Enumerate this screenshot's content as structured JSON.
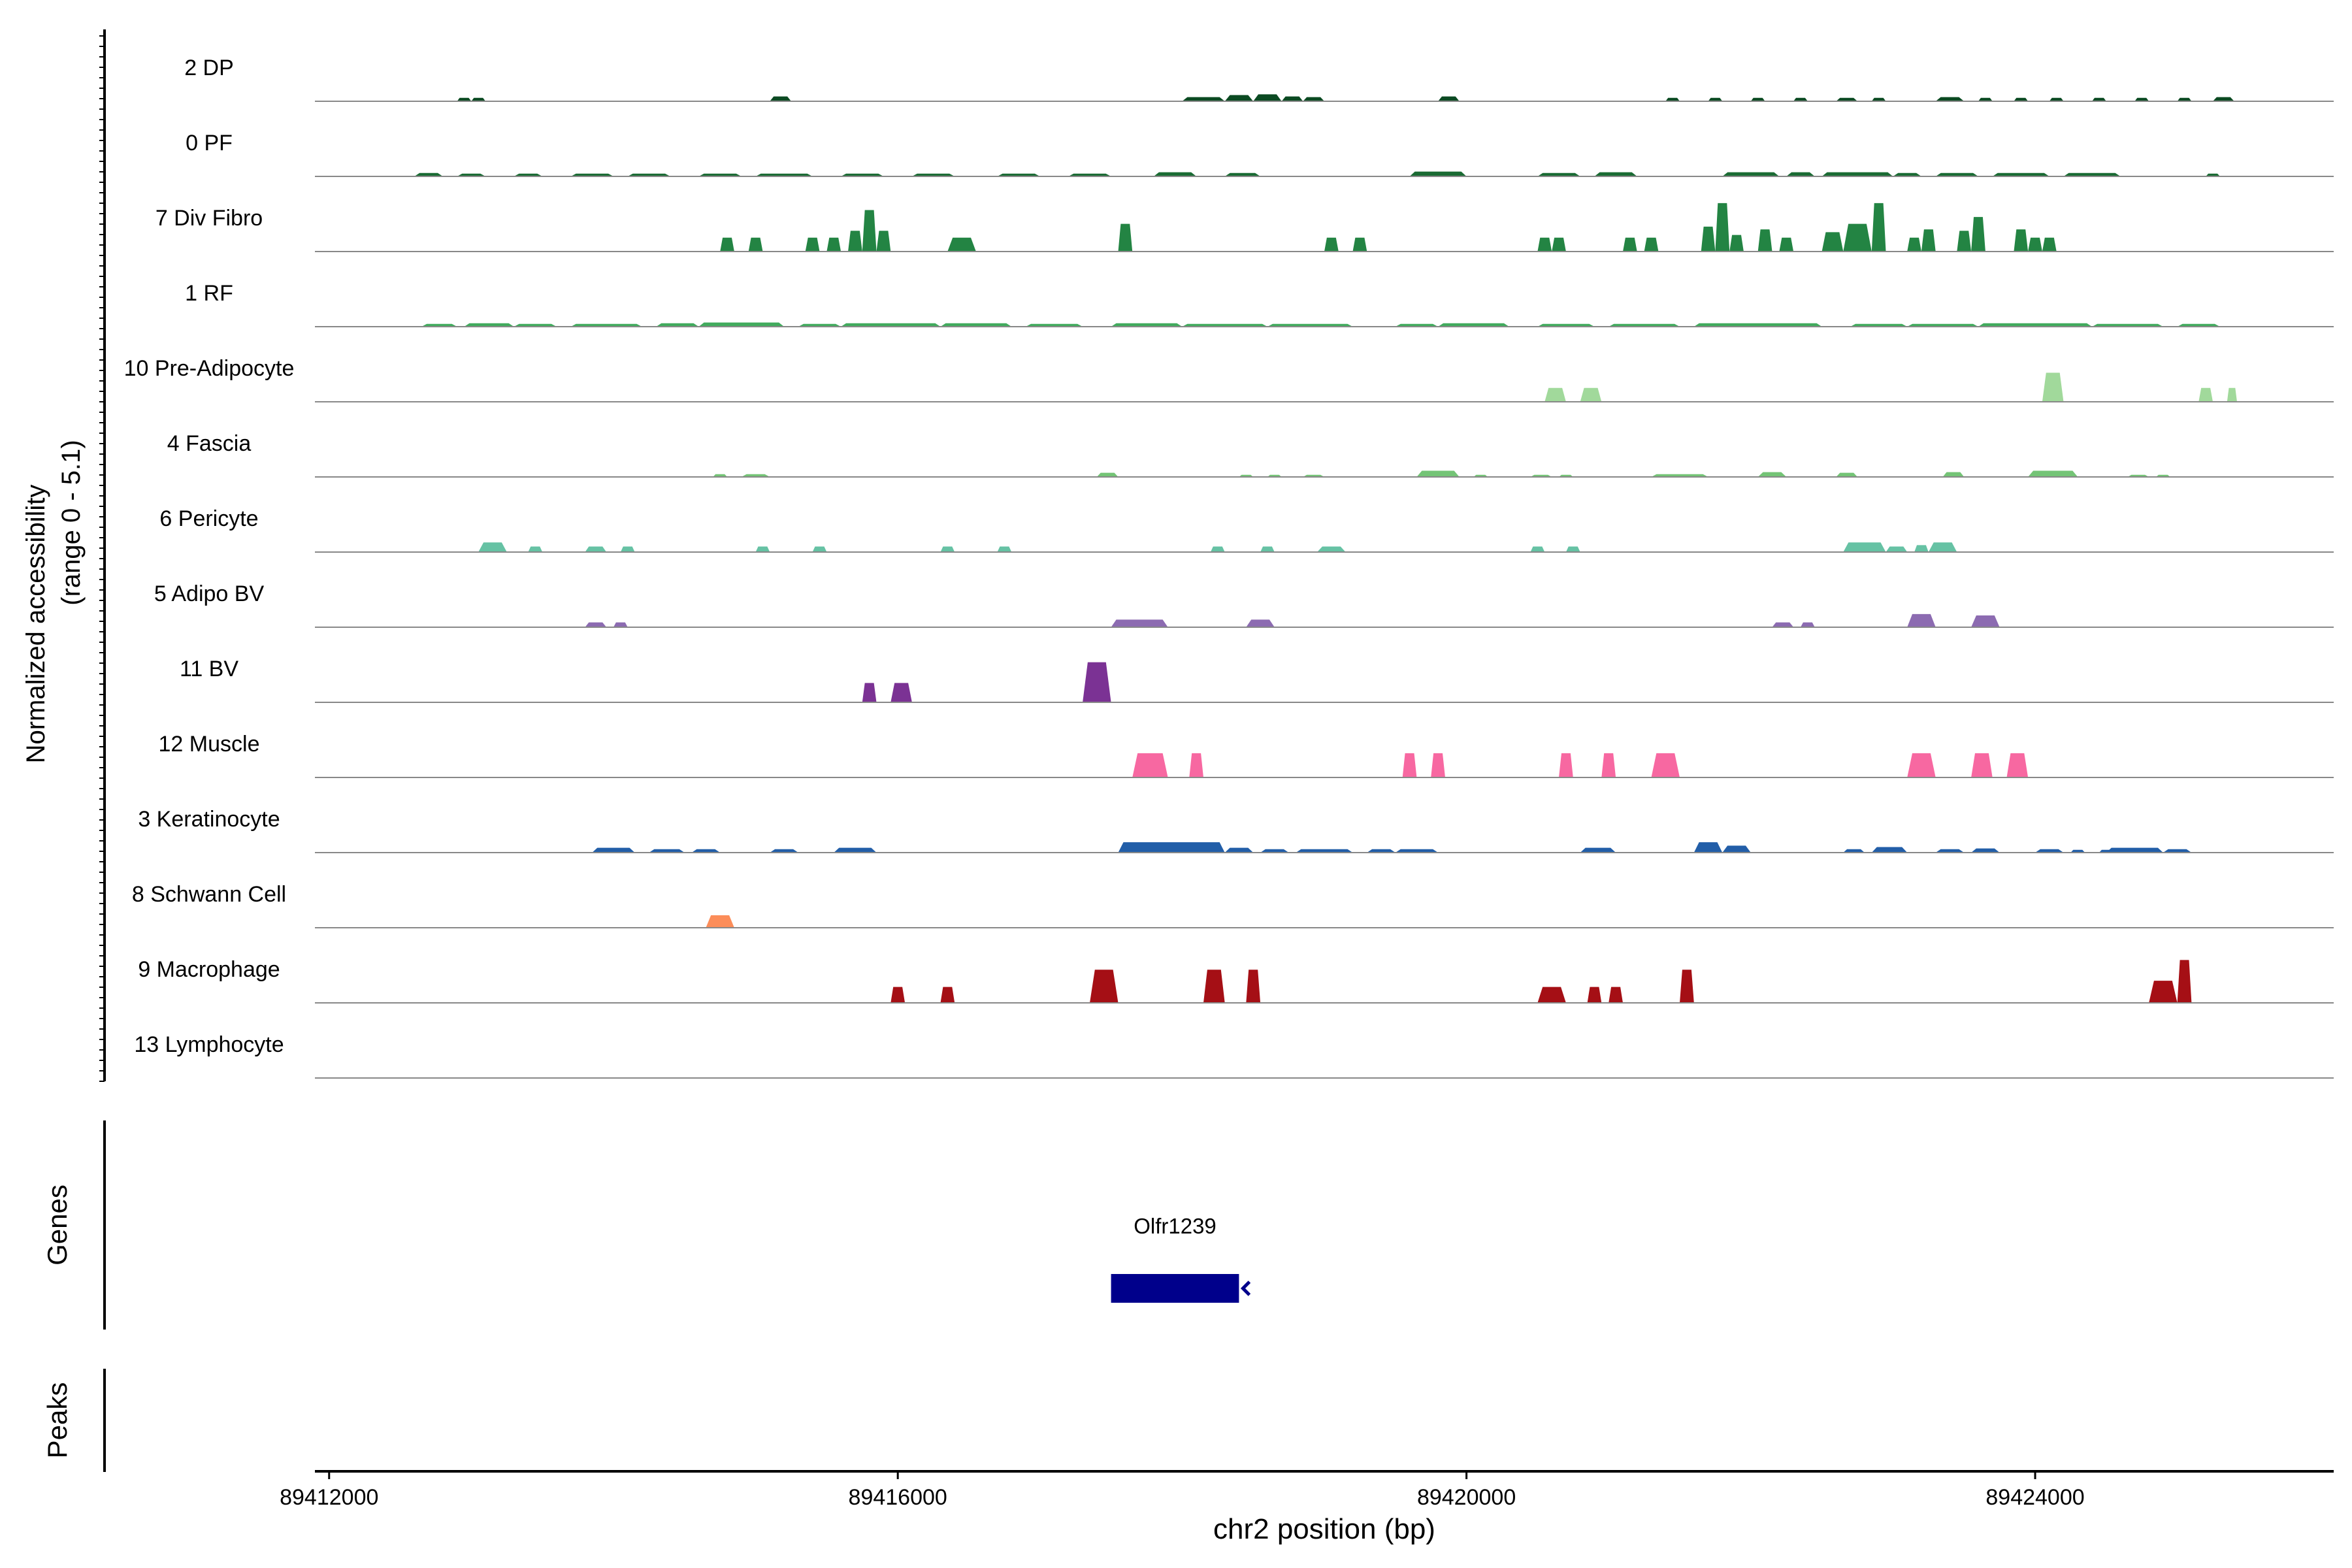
{
  "chart_data": {
    "type": "area",
    "title": "",
    "xlabel": "chr2 position (bp)",
    "ylabel_line1": "Normalized accessibility",
    "ylabel_line2": "(range 0 - 5.1)",
    "ylim": [
      0,
      5.1
    ],
    "xlim": [
      89411900,
      89426100
    ],
    "xticks": [
      89412000,
      89416000,
      89420000,
      89424000
    ],
    "xtick_labels": [
      "89412000",
      "89416000",
      "89420000",
      "89424000"
    ],
    "tracks": [
      {
        "name": "2 DP",
        "color": "#0b4a22",
        "regions": [
          [
            89412900,
            89413000,
            0.25
          ],
          [
            89413000,
            89413100,
            0.25
          ],
          [
            89415100,
            89415250,
            0.35
          ],
          [
            89418000,
            89418300,
            0.3
          ],
          [
            89418300,
            89418500,
            0.45
          ],
          [
            89418500,
            89418700,
            0.5
          ],
          [
            89418700,
            89418850,
            0.35
          ],
          [
            89418850,
            89419000,
            0.3
          ],
          [
            89419800,
            89419950,
            0.35
          ],
          [
            89421400,
            89421500,
            0.25
          ],
          [
            89421700,
            89421800,
            0.25
          ],
          [
            89422000,
            89422100,
            0.25
          ],
          [
            89422300,
            89422400,
            0.25
          ],
          [
            89422600,
            89422750,
            0.25
          ],
          [
            89422850,
            89422950,
            0.25
          ],
          [
            89423300,
            89423500,
            0.3
          ],
          [
            89423600,
            89423700,
            0.25
          ],
          [
            89423850,
            89423950,
            0.25
          ],
          [
            89424100,
            89424200,
            0.25
          ],
          [
            89424400,
            89424500,
            0.25
          ],
          [
            89424700,
            89424800,
            0.25
          ],
          [
            89425000,
            89425100,
            0.25
          ],
          [
            89425250,
            89425400,
            0.3
          ]
        ]
      },
      {
        "name": "0 PF",
        "color": "#1a6b33",
        "regions": [
          [
            89412600,
            89412800,
            0.25
          ],
          [
            89412900,
            89413100,
            0.2
          ],
          [
            89413300,
            89413500,
            0.2
          ],
          [
            89413700,
            89414000,
            0.2
          ],
          [
            89414100,
            89414400,
            0.2
          ],
          [
            89414600,
            89414900,
            0.2
          ],
          [
            89415000,
            89415400,
            0.2
          ],
          [
            89415600,
            89415900,
            0.2
          ],
          [
            89416100,
            89416400,
            0.2
          ],
          [
            89416700,
            89417000,
            0.2
          ],
          [
            89417200,
            89417500,
            0.2
          ],
          [
            89417800,
            89418100,
            0.3
          ],
          [
            89418300,
            89418550,
            0.25
          ],
          [
            89419600,
            89420000,
            0.35
          ],
          [
            89420500,
            89420800,
            0.25
          ],
          [
            89420900,
            89421200,
            0.3
          ],
          [
            89421800,
            89422200,
            0.3
          ],
          [
            89422250,
            89422450,
            0.3
          ],
          [
            89422500,
            89423000,
            0.3
          ],
          [
            89423000,
            89423200,
            0.25
          ],
          [
            89423300,
            89423600,
            0.25
          ],
          [
            89423700,
            89424100,
            0.25
          ],
          [
            89424200,
            89424600,
            0.25
          ],
          [
            89425200,
            89425300,
            0.2
          ]
        ]
      },
      {
        "name": "7 Div Fibro",
        "color": "#238443",
        "regions": [
          [
            89414750,
            89414850,
            1.0
          ],
          [
            89414950,
            89415050,
            1.0
          ],
          [
            89415350,
            89415450,
            1.0
          ],
          [
            89415500,
            89415600,
            1.0
          ],
          [
            89415650,
            89415750,
            1.5
          ],
          [
            89415750,
            89415850,
            3.0
          ],
          [
            89415850,
            89415950,
            1.5
          ],
          [
            89416350,
            89416550,
            1.0
          ],
          [
            89417550,
            89417650,
            2.0
          ],
          [
            89419000,
            89419100,
            1.0
          ],
          [
            89419200,
            89419300,
            1.0
          ],
          [
            89420500,
            89420600,
            1.0
          ],
          [
            89420600,
            89420700,
            1.0
          ],
          [
            89421100,
            89421200,
            1.0
          ],
          [
            89421250,
            89421350,
            1.0
          ],
          [
            89421650,
            89421750,
            1.8
          ],
          [
            89421750,
            89421850,
            3.5
          ],
          [
            89421850,
            89421950,
            1.2
          ],
          [
            89422050,
            89422150,
            1.6
          ],
          [
            89422200,
            89422300,
            1.0
          ],
          [
            89422500,
            89422650,
            1.4
          ],
          [
            89422650,
            89422850,
            2.0
          ],
          [
            89422850,
            89422950,
            3.5
          ],
          [
            89423100,
            89423200,
            1.0
          ],
          [
            89423200,
            89423300,
            1.6
          ],
          [
            89423450,
            89423550,
            1.5
          ],
          [
            89423550,
            89423650,
            2.5
          ],
          [
            89423850,
            89423950,
            1.6
          ],
          [
            89423950,
            89424050,
            1.0
          ],
          [
            89424050,
            89424150,
            1.0
          ]
        ]
      },
      {
        "name": "1 RF",
        "color": "#41ab5d",
        "regions": [
          [
            89412650,
            89412900,
            0.2
          ],
          [
            89412950,
            89413300,
            0.25
          ],
          [
            89413300,
            89413600,
            0.2
          ],
          [
            89413700,
            89414200,
            0.2
          ],
          [
            89414300,
            89414600,
            0.25
          ],
          [
            89414600,
            89415200,
            0.3
          ],
          [
            89415300,
            89415600,
            0.2
          ],
          [
            89415600,
            89416300,
            0.25
          ],
          [
            89416300,
            89416800,
            0.25
          ],
          [
            89416900,
            89417300,
            0.2
          ],
          [
            89417500,
            89418000,
            0.25
          ],
          [
            89418000,
            89418600,
            0.2
          ],
          [
            89418600,
            89419200,
            0.2
          ],
          [
            89419500,
            89419800,
            0.2
          ],
          [
            89419800,
            89420300,
            0.25
          ],
          [
            89420500,
            89420900,
            0.2
          ],
          [
            89421000,
            89421500,
            0.2
          ],
          [
            89421600,
            89422500,
            0.25
          ],
          [
            89422700,
            89423100,
            0.2
          ],
          [
            89423100,
            89423600,
            0.2
          ],
          [
            89423600,
            89424400,
            0.25
          ],
          [
            89424400,
            89424900,
            0.2
          ],
          [
            89425000,
            89425300,
            0.2
          ]
        ]
      },
      {
        "name": "10 Pre-Adipocyte",
        "color": "#a1d99b",
        "regions": [
          [
            89420550,
            89420700,
            1.0
          ],
          [
            89420800,
            89420950,
            1.0
          ],
          [
            89424050,
            89424200,
            2.1
          ],
          [
            89425150,
            89425250,
            1.0
          ],
          [
            89425350,
            89425420,
            1.0
          ]
        ]
      },
      {
        "name": "4 Fascia",
        "color": "#74c476",
        "regions": [
          [
            89414700,
            89414800,
            0.2
          ],
          [
            89414900,
            89415100,
            0.2
          ],
          [
            89417400,
            89417550,
            0.3
          ],
          [
            89418400,
            89418500,
            0.15
          ],
          [
            89418600,
            89418700,
            0.15
          ],
          [
            89418850,
            89419000,
            0.15
          ],
          [
            89419650,
            89419950,
            0.45
          ],
          [
            89420050,
            89420150,
            0.15
          ],
          [
            89420450,
            89420600,
            0.15
          ],
          [
            89420650,
            89420750,
            0.15
          ],
          [
            89421300,
            89421700,
            0.2
          ],
          [
            89422050,
            89422250,
            0.35
          ],
          [
            89422600,
            89422750,
            0.3
          ],
          [
            89423350,
            89423500,
            0.35
          ],
          [
            89423950,
            89424300,
            0.45
          ],
          [
            89424650,
            89424800,
            0.15
          ],
          [
            89424850,
            89424950,
            0.15
          ]
        ]
      },
      {
        "name": "6 Pericyte",
        "color": "#66c2a4",
        "regions": [
          [
            89413050,
            89413250,
            0.7
          ],
          [
            89413400,
            89413500,
            0.4
          ],
          [
            89413800,
            89413950,
            0.4
          ],
          [
            89414050,
            89414150,
            0.4
          ],
          [
            89415000,
            89415100,
            0.4
          ],
          [
            89415400,
            89415500,
            0.4
          ],
          [
            89416300,
            89416400,
            0.4
          ],
          [
            89416700,
            89416800,
            0.4
          ],
          [
            89418200,
            89418300,
            0.4
          ],
          [
            89418550,
            89418650,
            0.4
          ],
          [
            89418950,
            89419150,
            0.4
          ],
          [
            89420450,
            89420550,
            0.4
          ],
          [
            89420700,
            89420800,
            0.4
          ],
          [
            89422650,
            89422950,
            0.7
          ],
          [
            89422950,
            89423100,
            0.4
          ],
          [
            89423150,
            89423250,
            0.5
          ],
          [
            89423250,
            89423450,
            0.7
          ]
        ]
      },
      {
        "name": "5 Adipo BV",
        "color": "#8c6bb1",
        "regions": [
          [
            89413800,
            89413950,
            0.35
          ],
          [
            89414000,
            89414100,
            0.35
          ],
          [
            89417500,
            89417900,
            0.55
          ],
          [
            89418450,
            89418650,
            0.55
          ],
          [
            89422150,
            89422300,
            0.35
          ],
          [
            89422350,
            89422450,
            0.35
          ],
          [
            89423100,
            89423300,
            0.95
          ],
          [
            89423550,
            89423750,
            0.85
          ]
        ]
      },
      {
        "name": "11 BV",
        "color": "#7b3294",
        "regions": [
          [
            89415750,
            89415850,
            1.4
          ],
          [
            89415950,
            89416100,
            1.4
          ],
          [
            89417300,
            89417500,
            2.9
          ]
        ]
      },
      {
        "name": "12 Muscle",
        "color": "#f768a1",
        "regions": [
          [
            89417650,
            89417900,
            1.75
          ],
          [
            89418050,
            89418150,
            1.75
          ],
          [
            89419550,
            89419650,
            1.75
          ],
          [
            89419750,
            89419850,
            1.75
          ],
          [
            89420650,
            89420750,
            1.75
          ],
          [
            89420950,
            89421050,
            1.75
          ],
          [
            89421300,
            89421500,
            1.75
          ],
          [
            89423100,
            89423300,
            1.75
          ],
          [
            89423550,
            89423700,
            1.75
          ],
          [
            89423800,
            89423950,
            1.75
          ]
        ]
      },
      {
        "name": "3 Keratinocyte",
        "color": "#225ea8",
        "regions": [
          [
            89413850,
            89414150,
            0.35
          ],
          [
            89414250,
            89414500,
            0.25
          ],
          [
            89414550,
            89414750,
            0.25
          ],
          [
            89415100,
            89415300,
            0.25
          ],
          [
            89415550,
            89415850,
            0.35
          ],
          [
            89417550,
            89418300,
            0.75
          ],
          [
            89418300,
            89418500,
            0.35
          ],
          [
            89418550,
            89418750,
            0.25
          ],
          [
            89418800,
            89419200,
            0.25
          ],
          [
            89419300,
            89419500,
            0.25
          ],
          [
            89419500,
            89419800,
            0.25
          ],
          [
            89420800,
            89421050,
            0.35
          ],
          [
            89421600,
            89421800,
            0.75
          ],
          [
            89421800,
            89422000,
            0.5
          ],
          [
            89422650,
            89422800,
            0.25
          ],
          [
            89422850,
            89423100,
            0.4
          ],
          [
            89423300,
            89423500,
            0.25
          ],
          [
            89423550,
            89423750,
            0.3
          ],
          [
            89424000,
            89424200,
            0.25
          ],
          [
            89424250,
            89424350,
            0.2
          ],
          [
            89424450,
            89424550,
            0.2
          ],
          [
            89424500,
            89424900,
            0.35
          ],
          [
            89424900,
            89425100,
            0.25
          ]
        ]
      },
      {
        "name": "8 Schwann Cell",
        "color": "#fc8d59",
        "regions": [
          [
            89414650,
            89414850,
            0.9
          ]
        ]
      },
      {
        "name": "9 Macrophage",
        "color": "#a50f15",
        "regions": [
          [
            89415950,
            89416050,
            1.15
          ],
          [
            89416300,
            89416400,
            1.15
          ],
          [
            89417350,
            89417550,
            2.4
          ],
          [
            89418150,
            89418300,
            2.4
          ],
          [
            89418450,
            89418550,
            2.4
          ],
          [
            89420500,
            89420700,
            1.15
          ],
          [
            89420850,
            89420950,
            1.15
          ],
          [
            89421000,
            89421100,
            1.15
          ],
          [
            89421500,
            89421600,
            2.4
          ],
          [
            89424800,
            89425000,
            1.6
          ],
          [
            89425000,
            89425100,
            3.1
          ]
        ]
      },
      {
        "name": "13 Lymphocyte",
        "color": "#5a3a8a",
        "regions": []
      }
    ],
    "genes_panel_label": "Genes",
    "peaks_panel_label": "Peaks",
    "gene": {
      "name": "Olfr1239",
      "start": 89417500,
      "end": 89418400,
      "color": "#00008b",
      "strand": "-"
    }
  }
}
